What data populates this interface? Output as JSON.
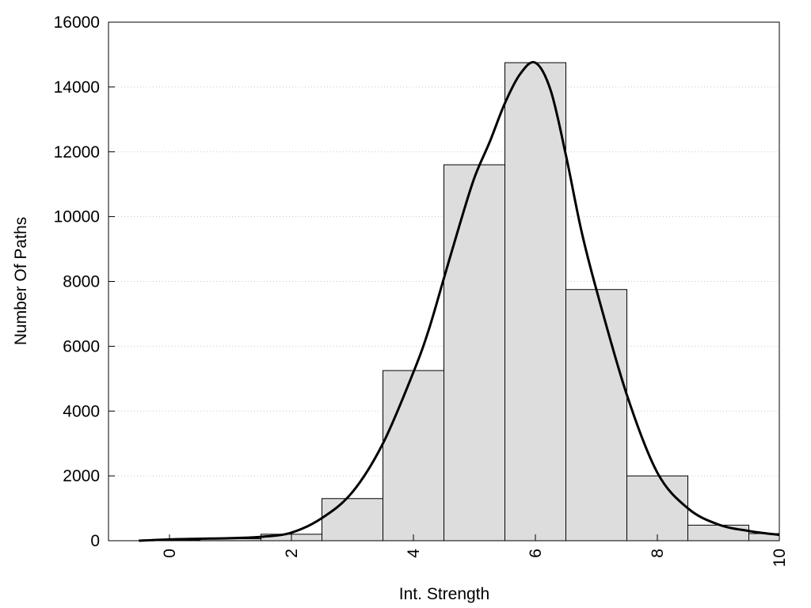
{
  "chart_data": {
    "type": "bar",
    "xlabel": "Int. Strength",
    "ylabel": "Number Of Paths",
    "xlim": [
      -1,
      10
    ],
    "ylim": [
      0,
      16000
    ],
    "x_ticks": [
      "0",
      "2",
      "4",
      "6",
      "8",
      "10"
    ],
    "y_ticks": [
      "0",
      "2000",
      "4000",
      "6000",
      "8000",
      "10000",
      "12000",
      "14000",
      "16000"
    ],
    "grid": "y-dotted",
    "bar_color": "#dddddd",
    "bins": [
      {
        "center": 0,
        "value": 20
      },
      {
        "center": 1,
        "value": 60
      },
      {
        "center": 2,
        "value": 200
      },
      {
        "center": 3,
        "value": 1300
      },
      {
        "center": 4,
        "value": 5250
      },
      {
        "center": 5,
        "value": 11600
      },
      {
        "center": 6,
        "value": 14750
      },
      {
        "center": 7,
        "value": 7750
      },
      {
        "center": 8,
        "value": 2000
      },
      {
        "center": 9,
        "value": 480
      },
      {
        "center": 10,
        "value": 220
      }
    ],
    "density_curve": {
      "x": [
        -0.5,
        0,
        0.5,
        1,
        1.5,
        2,
        2.5,
        3,
        3.5,
        4,
        4.25,
        4.5,
        4.75,
        5,
        5.25,
        5.5,
        5.75,
        6,
        6.25,
        6.5,
        6.75,
        7,
        7.5,
        8,
        8.5,
        9,
        9.5,
        10
      ],
      "y": [
        0,
        40,
        60,
        80,
        120,
        250,
        700,
        1500,
        3000,
        5200,
        6500,
        8100,
        9700,
        11200,
        12300,
        13500,
        14400,
        14750,
        13900,
        11900,
        9600,
        7750,
        4500,
        2100,
        1000,
        500,
        300,
        180
      ]
    }
  }
}
